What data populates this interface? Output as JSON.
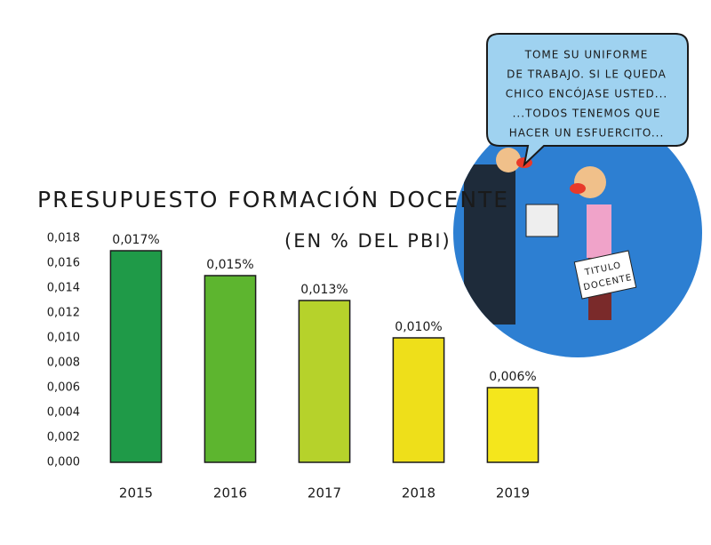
{
  "chart_data": {
    "type": "bar",
    "title": "PRESUPUESTO FORMACIÓN DOCENTE",
    "subtitle": "(EN % DEL PBI)",
    "categories": [
      "2015",
      "2016",
      "2017",
      "2018",
      "2019"
    ],
    "values": [
      0.017,
      0.015,
      0.013,
      0.01,
      0.006
    ],
    "value_labels": [
      "0,017%",
      "0,015%",
      "0,013%",
      "0,010%",
      "0,006%"
    ],
    "colors": [
      "#1f9a48",
      "#5db52f",
      "#b6d22b",
      "#eedf1a",
      "#f4e61c"
    ],
    "ylim": [
      0,
      0.018
    ],
    "yticks": [
      {
        "value": 0,
        "label": "0,000"
      },
      {
        "value": 0.002,
        "label": "0,002"
      },
      {
        "value": 0.004,
        "label": "0,004"
      },
      {
        "value": 0.006,
        "label": "0,006"
      },
      {
        "value": 0.008,
        "label": "0,008"
      },
      {
        "value": 0.01,
        "label": "0,010"
      },
      {
        "value": 0.012,
        "label": "0,012"
      },
      {
        "value": 0.014,
        "label": "0,014"
      },
      {
        "value": 0.016,
        "label": "0,016"
      },
      {
        "value": 0.018,
        "label": "0,018"
      }
    ],
    "grid": false
  },
  "cartoon": {
    "bubble_text": [
      "TOME SU UNIFORME",
      "DE TRABAJO. SI LE QUEDA",
      "CHICO ENCÓJASE USTED...",
      "...TODOS TENEMOS QUE",
      "HACER UN ESFUERCITO..."
    ],
    "sign_text": [
      "TITULO",
      "DOCENTE"
    ]
  }
}
